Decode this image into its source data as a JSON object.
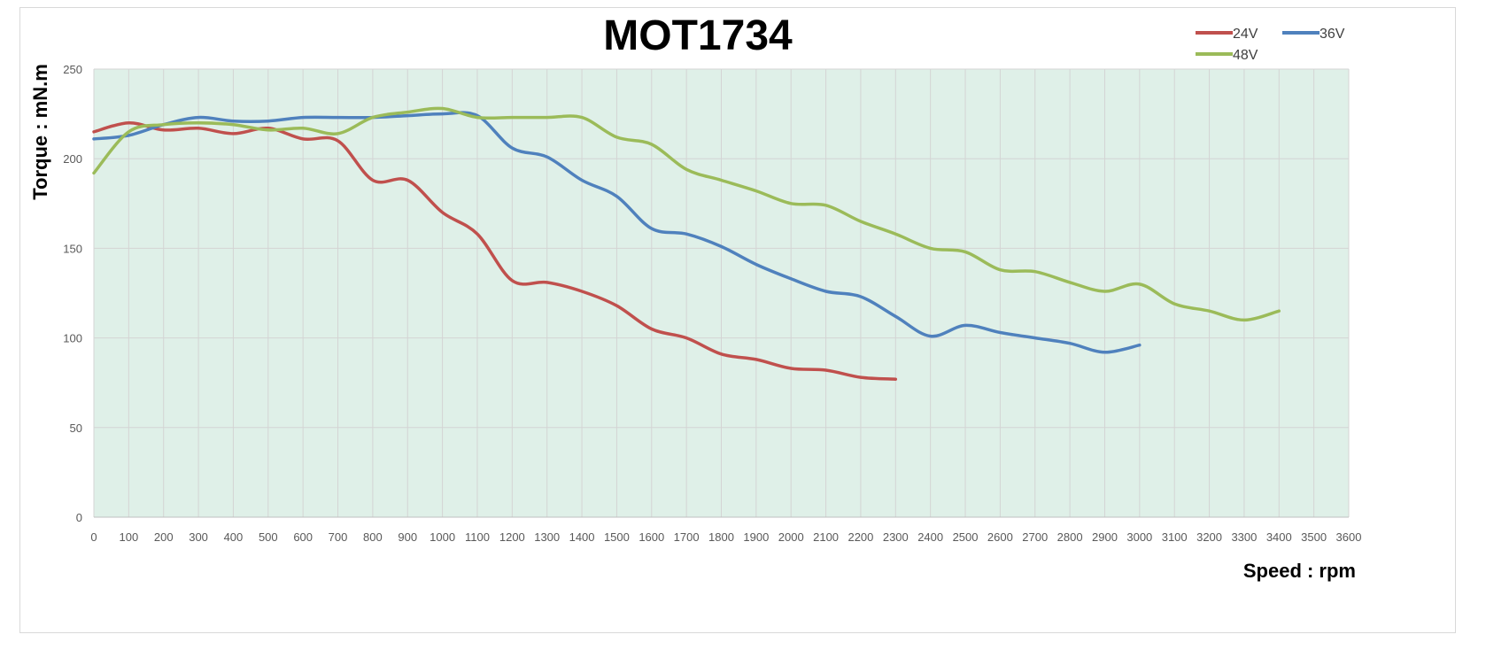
{
  "chart_data": {
    "type": "line",
    "title": "MOT1734",
    "xlabel": "Speed : rpm",
    "ylabel": "Torque : mN.m",
    "xlim": [
      0,
      3600
    ],
    "ylim": [
      0,
      250
    ],
    "x_ticks": [
      0,
      100,
      200,
      300,
      400,
      500,
      600,
      700,
      800,
      900,
      1000,
      1100,
      1200,
      1300,
      1400,
      1500,
      1600,
      1700,
      1800,
      1900,
      2000,
      2100,
      2200,
      2300,
      2400,
      2500,
      2600,
      2700,
      2800,
      2900,
      3000,
      3100,
      3200,
      3300,
      3400,
      3500,
      3600
    ],
    "y_ticks": [
      0,
      50,
      100,
      150,
      200,
      250
    ],
    "grid": true,
    "plot_background": "#dff0e8",
    "legend_position": "top-right",
    "series": [
      {
        "name": "24V",
        "color": "#c0504d",
        "x": [
          0,
          100,
          200,
          300,
          400,
          500,
          600,
          700,
          800,
          900,
          1000,
          1100,
          1200,
          1300,
          1400,
          1500,
          1600,
          1700,
          1800,
          1900,
          2000,
          2100,
          2200,
          2300
        ],
        "y": [
          215,
          220,
          216,
          217,
          214,
          217,
          211,
          210,
          188,
          188,
          170,
          158,
          132,
          131,
          126,
          118,
          105,
          100,
          91,
          88,
          83,
          82,
          78,
          77
        ]
      },
      {
        "name": "36V",
        "color": "#4f81bd",
        "x": [
          0,
          100,
          200,
          300,
          400,
          500,
          600,
          700,
          800,
          900,
          1000,
          1100,
          1200,
          1300,
          1400,
          1500,
          1600,
          1700,
          1800,
          1900,
          2000,
          2100,
          2200,
          2300,
          2400,
          2500,
          2600,
          2700,
          2800,
          2900,
          3000
        ],
        "y": [
          211,
          213,
          219,
          223,
          221,
          221,
          223,
          223,
          223,
          224,
          225,
          224,
          206,
          201,
          188,
          179,
          161,
          158,
          151,
          141,
          133,
          126,
          123,
          112,
          101,
          107,
          103,
          100,
          97,
          92,
          96
        ]
      },
      {
        "name": "48V",
        "color": "#9bbb59",
        "x": [
          0,
          100,
          200,
          300,
          400,
          500,
          600,
          700,
          800,
          900,
          1000,
          1100,
          1200,
          1300,
          1400,
          1500,
          1600,
          1700,
          1800,
          1900,
          2000,
          2100,
          2200,
          2300,
          2400,
          2500,
          2600,
          2700,
          2800,
          2900,
          3000,
          3100,
          3200,
          3300,
          3400
        ],
        "y": [
          192,
          215,
          219,
          220,
          219,
          216,
          217,
          214,
          223,
          226,
          228,
          223,
          223,
          223,
          223,
          212,
          208,
          194,
          188,
          182,
          175,
          174,
          165,
          158,
          150,
          148,
          138,
          137,
          131,
          126,
          130,
          119,
          115,
          110,
          115
        ]
      }
    ]
  }
}
